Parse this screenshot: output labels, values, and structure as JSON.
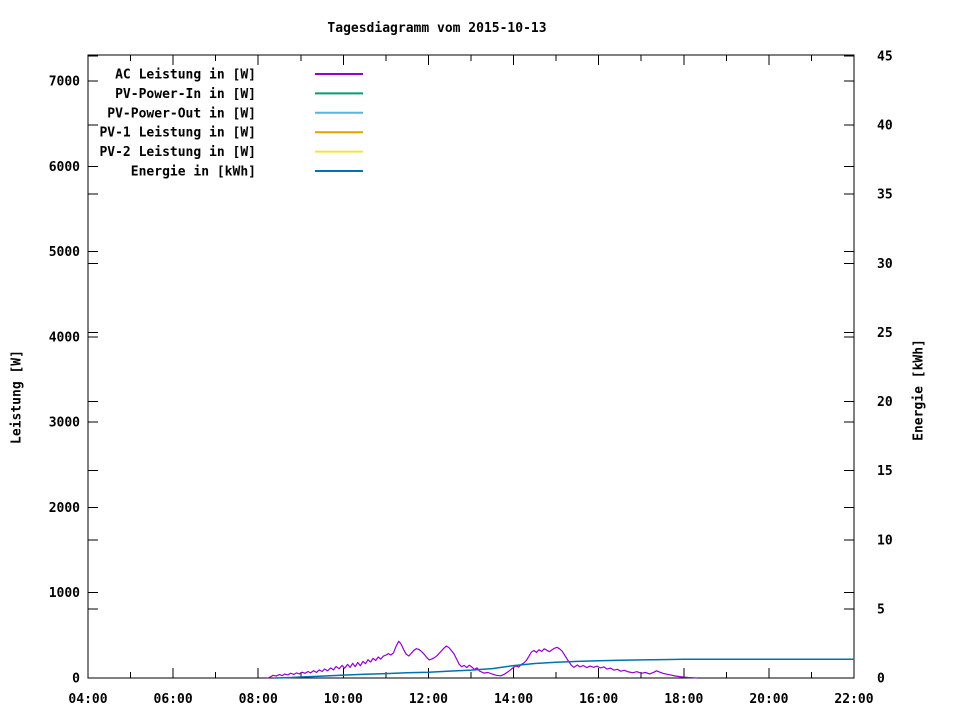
{
  "title": "Tagesdiagramm vom 2015-10-13",
  "chart_data": {
    "type": "line",
    "title": "Tagesdiagramm vom 2015-10-13",
    "xlabel": "",
    "grid": false,
    "legend_position": "top-left-inside",
    "x_axis": {
      "unit": "time of day",
      "range_hours": [
        4,
        22
      ],
      "tick_hours": [
        4,
        6,
        8,
        10,
        12,
        14,
        16,
        18,
        20,
        22
      ],
      "tick_labels": [
        "04:00",
        "06:00",
        "08:00",
        "10:00",
        "12:00",
        "14:00",
        "16:00",
        "18:00",
        "20:00",
        "22:00"
      ],
      "minor_tick_hours": [
        5,
        7,
        9,
        11,
        13,
        15,
        17,
        19,
        21
      ]
    },
    "y_left_axis": {
      "label": "Leistung [W]",
      "range": [
        0,
        7306
      ],
      "tick_values": [
        0,
        1000,
        2000,
        3000,
        4000,
        5000,
        6000,
        7000
      ],
      "tick_labels": [
        "0",
        "1000",
        "2000",
        "3000",
        "4000",
        "5000",
        "6000",
        "7000"
      ]
    },
    "y_right_axis": {
      "label": "Energie [kWh]",
      "range": [
        0,
        45.1
      ],
      "tick_values": [
        0,
        5,
        10,
        15,
        20,
        25,
        30,
        35,
        40,
        45
      ],
      "tick_labels": [
        "0",
        "5",
        "10",
        "15",
        "20",
        "25",
        "30",
        "35",
        "40",
        "45"
      ]
    },
    "series": [
      {
        "name": "AC Leistung in [W]",
        "color": "#9400D3",
        "axis": "left",
        "visible": true,
        "points": [
          [
            8.23,
            0
          ],
          [
            8.3,
            18
          ],
          [
            8.35,
            32
          ],
          [
            8.42,
            22
          ],
          [
            8.5,
            40
          ],
          [
            8.56,
            28
          ],
          [
            8.62,
            46
          ],
          [
            8.7,
            36
          ],
          [
            8.76,
            55
          ],
          [
            8.84,
            42
          ],
          [
            8.9,
            60
          ],
          [
            8.97,
            48
          ],
          [
            9.03,
            68
          ],
          [
            9.1,
            55
          ],
          [
            9.17,
            76
          ],
          [
            9.23,
            60
          ],
          [
            9.3,
            86
          ],
          [
            9.37,
            66
          ],
          [
            9.43,
            95
          ],
          [
            9.5,
            76
          ],
          [
            9.56,
            105
          ],
          [
            9.63,
            84
          ],
          [
            9.7,
            118
          ],
          [
            9.77,
            95
          ],
          [
            9.83,
            135
          ],
          [
            9.9,
            108
          ],
          [
            9.97,
            148
          ],
          [
            10.03,
            115
          ],
          [
            10.1,
            160
          ],
          [
            10.16,
            124
          ],
          [
            10.22,
            172
          ],
          [
            10.28,
            132
          ],
          [
            10.34,
            182
          ],
          [
            10.4,
            144
          ],
          [
            10.46,
            195
          ],
          [
            10.52,
            168
          ],
          [
            10.58,
            214
          ],
          [
            10.64,
            188
          ],
          [
            10.7,
            230
          ],
          [
            10.76,
            205
          ],
          [
            10.82,
            246
          ],
          [
            10.88,
            222
          ],
          [
            10.94,
            256
          ],
          [
            11.0,
            268
          ],
          [
            11.06,
            285
          ],
          [
            11.12,
            270
          ],
          [
            11.18,
            296
          ],
          [
            11.24,
            372
          ],
          [
            11.3,
            430
          ],
          [
            11.36,
            395
          ],
          [
            11.42,
            330
          ],
          [
            11.48,
            278
          ],
          [
            11.54,
            258
          ],
          [
            11.6,
            292
          ],
          [
            11.66,
            326
          ],
          [
            11.72,
            344
          ],
          [
            11.78,
            334
          ],
          [
            11.84,
            310
          ],
          [
            11.9,
            278
          ],
          [
            11.96,
            240
          ],
          [
            12.02,
            212
          ],
          [
            12.08,
            224
          ],
          [
            12.14,
            238
          ],
          [
            12.2,
            262
          ],
          [
            12.28,
            305
          ],
          [
            12.36,
            348
          ],
          [
            12.42,
            375
          ],
          [
            12.48,
            356
          ],
          [
            12.54,
            322
          ],
          [
            12.6,
            282
          ],
          [
            12.66,
            225
          ],
          [
            12.72,
            162
          ],
          [
            12.78,
            132
          ],
          [
            12.84,
            148
          ],
          [
            12.9,
            122
          ],
          [
            12.96,
            150
          ],
          [
            13.02,
            128
          ],
          [
            13.08,
            100
          ],
          [
            13.14,
            118
          ],
          [
            13.2,
            82
          ],
          [
            13.3,
            58
          ],
          [
            13.4,
            64
          ],
          [
            13.5,
            46
          ],
          [
            13.6,
            32
          ],
          [
            13.7,
            26
          ],
          [
            13.8,
            48
          ],
          [
            13.9,
            85
          ],
          [
            14.0,
            125
          ],
          [
            14.06,
            142
          ],
          [
            14.12,
            128
          ],
          [
            14.18,
            158
          ],
          [
            14.24,
            176
          ],
          [
            14.3,
            205
          ],
          [
            14.36,
            255
          ],
          [
            14.42,
            305
          ],
          [
            14.48,
            322
          ],
          [
            14.54,
            300
          ],
          [
            14.6,
            332
          ],
          [
            14.66,
            312
          ],
          [
            14.72,
            342
          ],
          [
            14.78,
            326
          ],
          [
            14.84,
            308
          ],
          [
            14.9,
            330
          ],
          [
            14.96,
            348
          ],
          [
            15.02,
            360
          ],
          [
            15.08,
            342
          ],
          [
            15.14,
            315
          ],
          [
            15.2,
            268
          ],
          [
            15.28,
            205
          ],
          [
            15.36,
            148
          ],
          [
            15.42,
            126
          ],
          [
            15.5,
            152
          ],
          [
            15.56,
            130
          ],
          [
            15.64,
            146
          ],
          [
            15.72,
            122
          ],
          [
            15.8,
            140
          ],
          [
            15.88,
            126
          ],
          [
            15.96,
            138
          ],
          [
            16.04,
            118
          ],
          [
            16.12,
            130
          ],
          [
            16.2,
            104
          ],
          [
            16.28,
            116
          ],
          [
            16.36,
            92
          ],
          [
            16.44,
            102
          ],
          [
            16.52,
            80
          ],
          [
            16.6,
            90
          ],
          [
            16.7,
            72
          ],
          [
            16.8,
            62
          ],
          [
            16.9,
            74
          ],
          [
            17.0,
            55
          ],
          [
            17.1,
            64
          ],
          [
            17.2,
            48
          ],
          [
            17.3,
            68
          ],
          [
            17.36,
            84
          ],
          [
            17.44,
            68
          ],
          [
            17.52,
            54
          ],
          [
            17.6,
            44
          ],
          [
            17.7,
            34
          ],
          [
            17.8,
            24
          ],
          [
            17.9,
            16
          ],
          [
            18.0,
            10
          ],
          [
            18.1,
            6
          ],
          [
            18.2,
            3
          ],
          [
            18.3,
            0
          ]
        ]
      },
      {
        "name": "PV-Power-In in [W]",
        "color": "#009E73",
        "axis": "left",
        "visible": false,
        "points": []
      },
      {
        "name": "PV-Power-Out in [W]",
        "color": "#56B4E9",
        "axis": "left",
        "visible": false,
        "points": []
      },
      {
        "name": "PV-1 Leistung in [W]",
        "color": "#E69F00",
        "axis": "left",
        "visible": false,
        "points": []
      },
      {
        "name": "PV-2 Leistung in [W]",
        "color": "#F0E442",
        "axis": "left",
        "visible": false,
        "points": []
      },
      {
        "name": "Energie in [kWh]",
        "color": "#0072B2",
        "axis": "right",
        "visible": true,
        "points": [
          [
            8.4,
            0.0
          ],
          [
            8.7,
            0.03
          ],
          [
            9.0,
            0.07
          ],
          [
            9.5,
            0.14
          ],
          [
            10.0,
            0.21
          ],
          [
            10.5,
            0.27
          ],
          [
            11.0,
            0.32
          ],
          [
            11.5,
            0.38
          ],
          [
            12.0,
            0.42
          ],
          [
            12.5,
            0.5
          ],
          [
            13.0,
            0.57
          ],
          [
            13.5,
            0.68
          ],
          [
            14.0,
            0.9
          ],
          [
            14.5,
            1.05
          ],
          [
            15.0,
            1.14
          ],
          [
            15.5,
            1.2
          ],
          [
            16.0,
            1.25
          ],
          [
            16.5,
            1.28
          ],
          [
            17.0,
            1.31
          ],
          [
            17.5,
            1.33
          ],
          [
            18.0,
            1.35
          ],
          [
            22.0,
            1.35
          ]
        ]
      }
    ]
  },
  "colors": {
    "background": "#ffffff",
    "axis": "#000000",
    "text": "#000000"
  }
}
